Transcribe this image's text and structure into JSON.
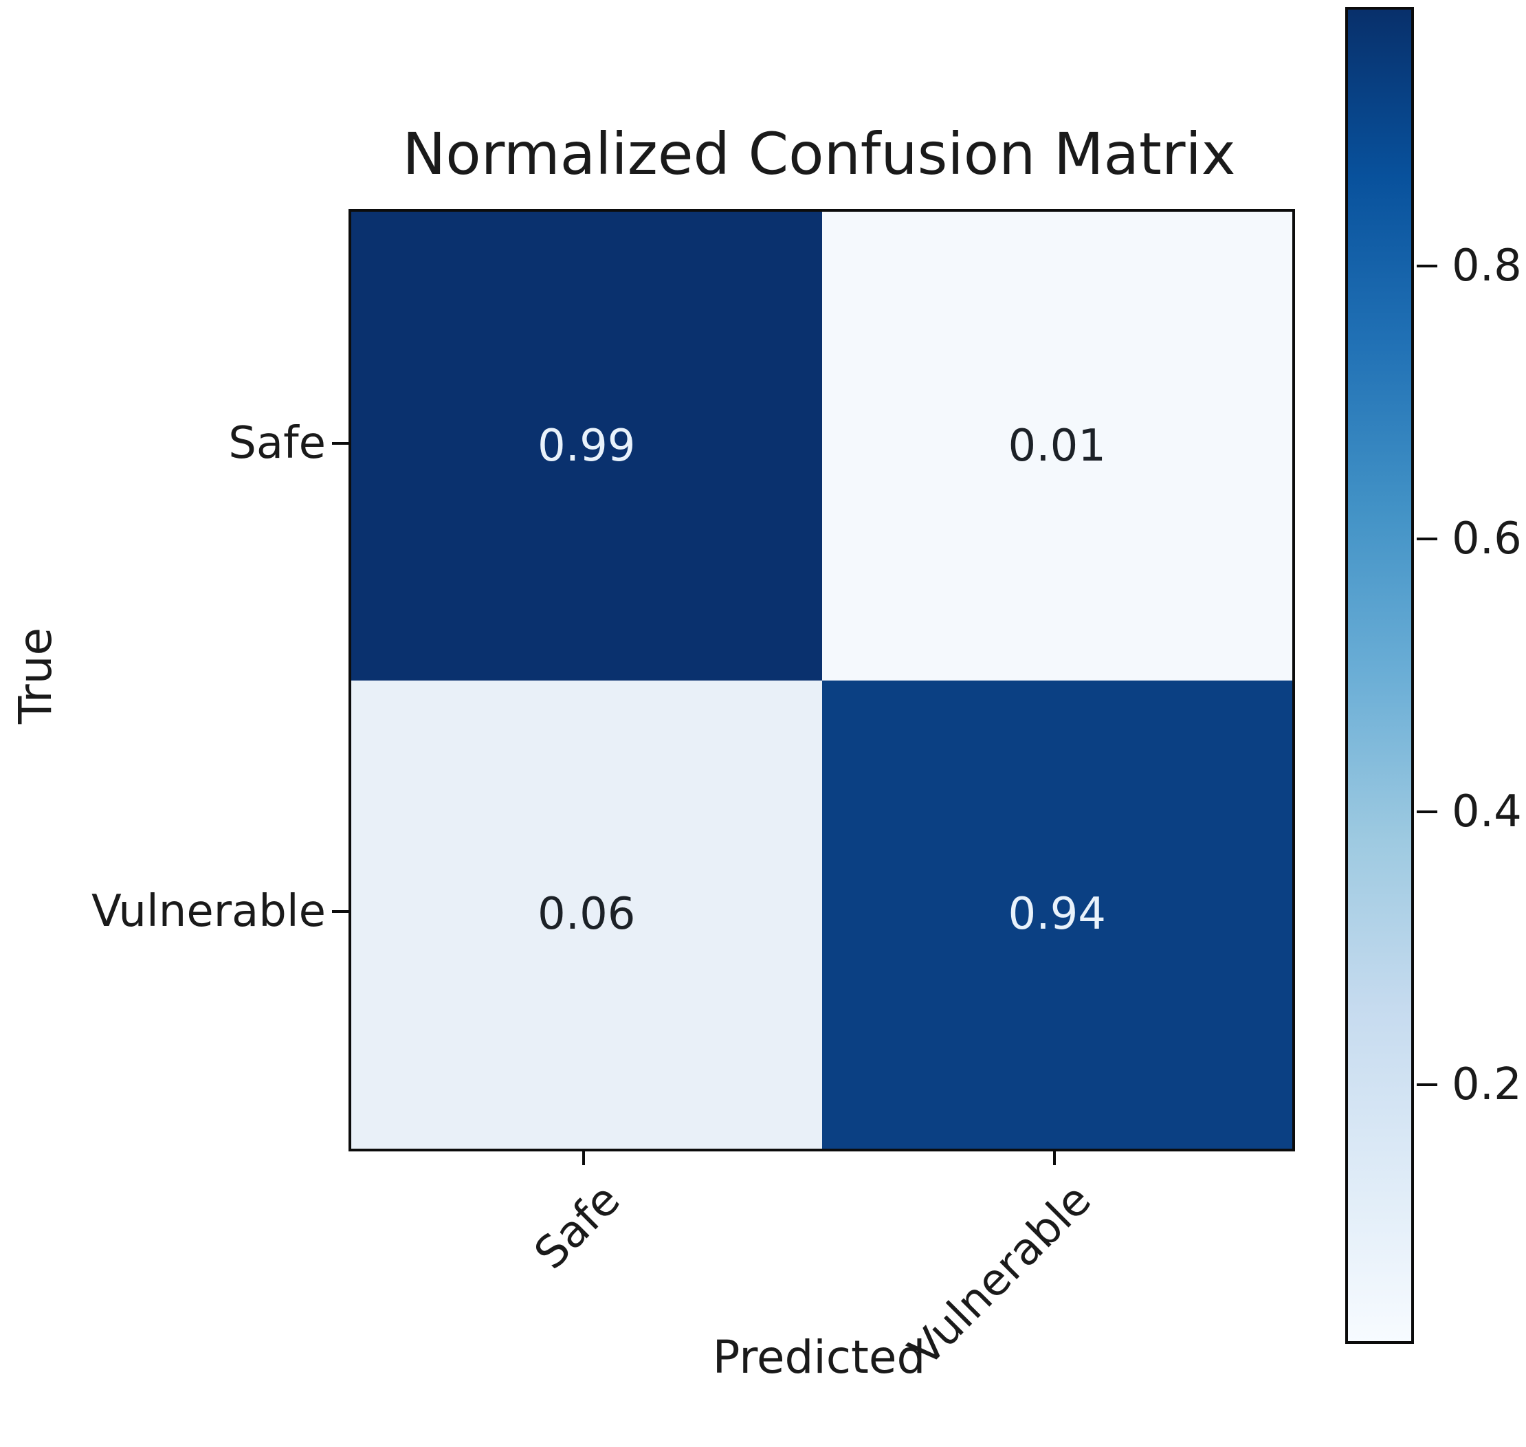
{
  "chart_data": {
    "type": "heatmap",
    "title": "Normalized Confusion Matrix",
    "xlabel": "Predicted",
    "ylabel": "True",
    "x_categories": [
      "Safe",
      "Vulnerable"
    ],
    "y_categories": [
      "Safe",
      "Vulnerable"
    ],
    "matrix": [
      [
        0.99,
        0.01
      ],
      [
        0.06,
        0.94
      ]
    ],
    "cell_labels": [
      [
        "0.99",
        "0.01"
      ],
      [
        "0.06",
        "0.94"
      ]
    ],
    "cell_colors": [
      [
        "#0a316e",
        "#f5f9fd"
      ],
      [
        "#e9f0f8",
        "#0b4083"
      ]
    ],
    "cell_text_colors": [
      [
        "#e9f2fb",
        "#1c2127"
      ],
      [
        "#1c2127",
        "#e9f2fb"
      ]
    ],
    "colormap": "Blues",
    "grid": false,
    "legend": "none",
    "xtick_rotation_deg": 45,
    "colorbar": {
      "vmin": 0.01,
      "vmax": 0.99,
      "ticks": [
        0.8,
        0.6,
        0.4,
        0.2
      ],
      "gradient_stops_bottom_to_top": [
        "#f7fbff",
        "#deebf7",
        "#c6dbef",
        "#9ecae1",
        "#6baed6",
        "#4292c6",
        "#2171b5",
        "#08519c",
        "#08306b"
      ]
    }
  }
}
